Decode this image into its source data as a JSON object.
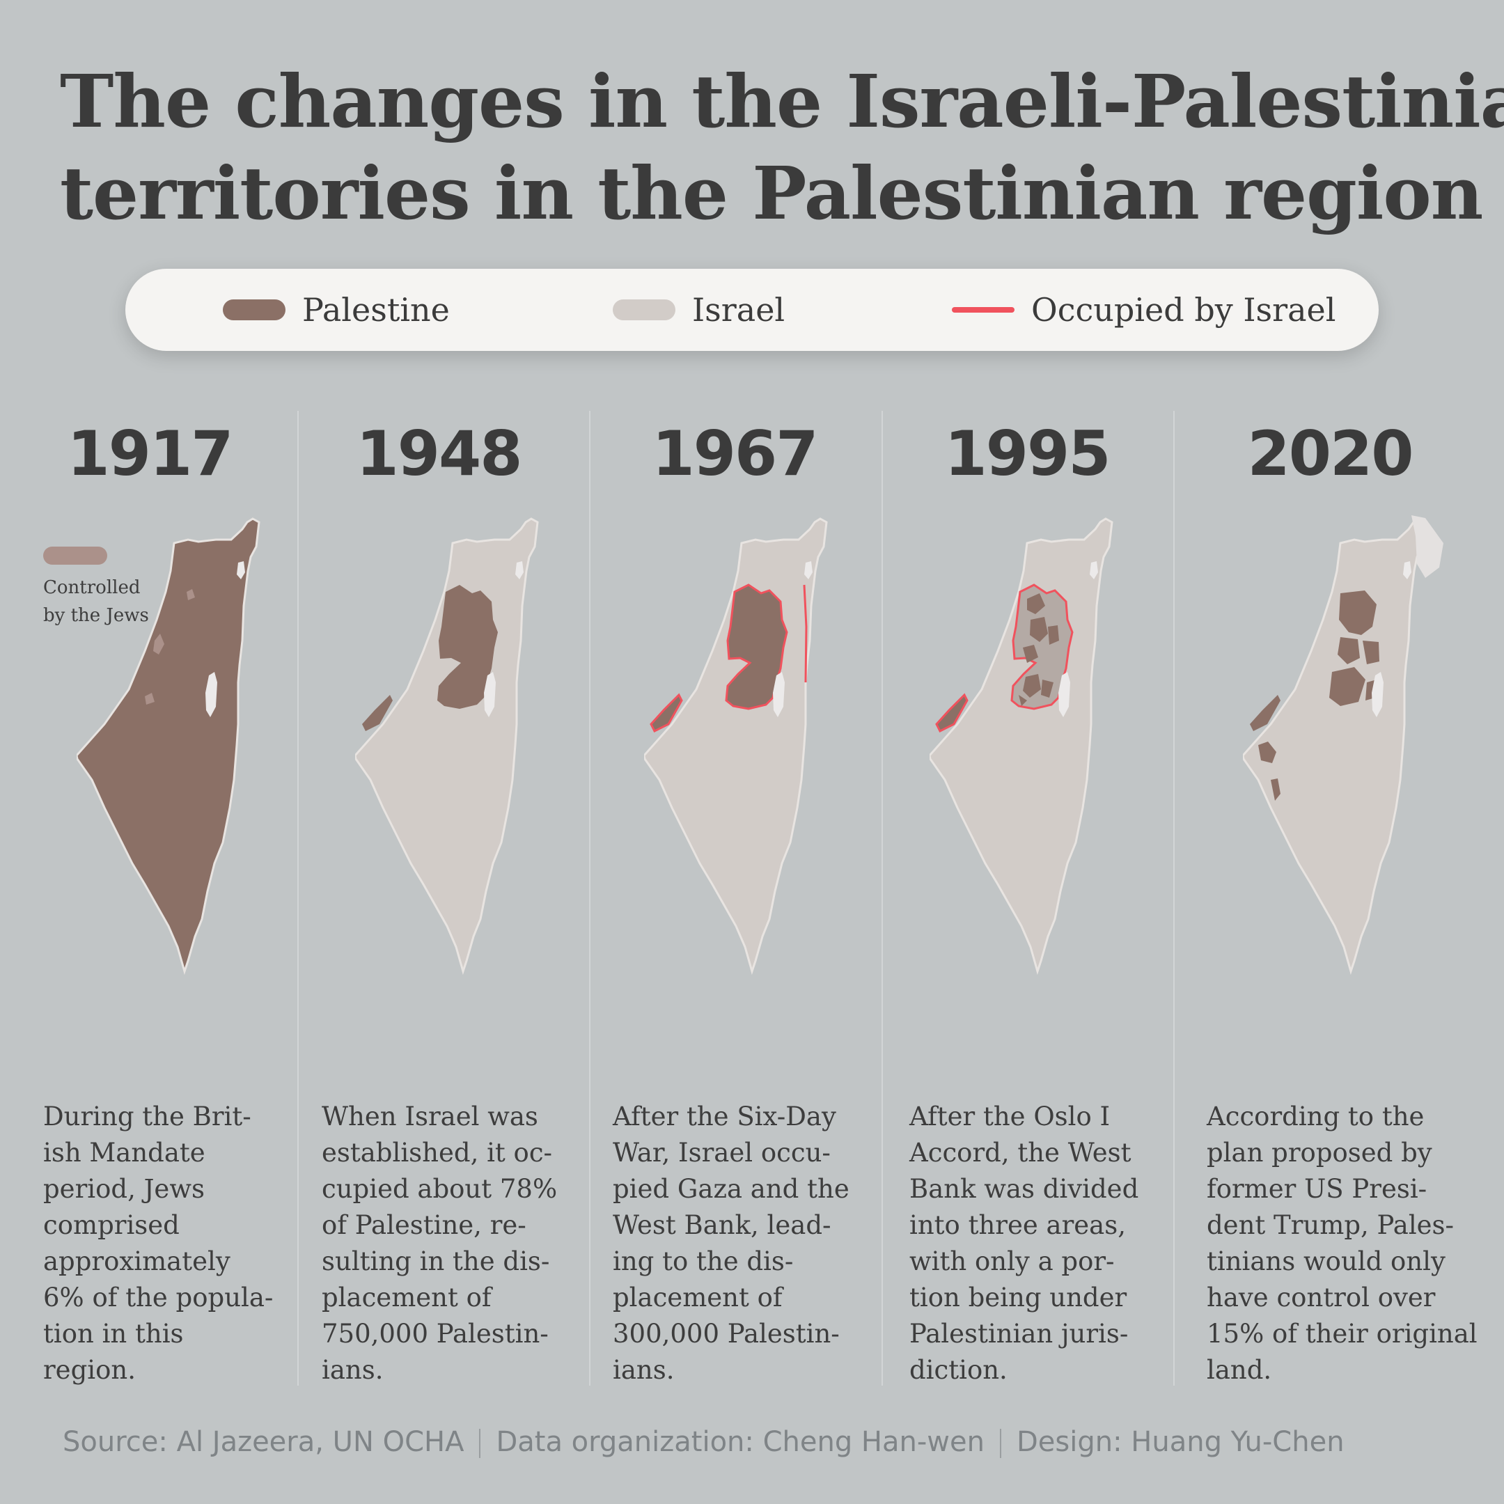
{
  "title_lines": [
    "The changes in the Israeli-Palestinian",
    "territories in the Palestinian region"
  ],
  "legend": [
    {
      "label": "Palestine",
      "color": "#8b7066"
    },
    {
      "label": "Israel",
      "color": "#d2ccc8"
    },
    {
      "label": "Occupied by Israel",
      "color": "#f0525d"
    }
  ],
  "note": {
    "lines": [
      "Controlled",
      "by the Jews"
    ],
    "color": "#ab918a"
  },
  "panels": [
    {
      "year": "1917",
      "desc": [
        "During the Brit-",
        "ish Mandate",
        "period, Jews",
        "comprised",
        "approximately",
        "6% of the popula-",
        "tion in this",
        "region."
      ]
    },
    {
      "year": "1948",
      "desc": [
        "When Israel was",
        "established, it oc-",
        "cupied about 78%",
        "of Palestine, re-",
        "sulting in the dis-",
        "placement of",
        "750,000 Palestin-",
        "ians."
      ]
    },
    {
      "year": "1967",
      "desc": [
        "After the Six-Day",
        "War, Israel occu-",
        "pied Gaza and the",
        "West Bank, lead-",
        "ing to the dis-",
        "placement of",
        "300,000 Palestin-",
        "ians."
      ]
    },
    {
      "year": "1995",
      "desc": [
        "After the Oslo I",
        "Accord, the West",
        "Bank was divided",
        "into three areas,",
        "with only a por-",
        "tion being under",
        "Palestinian juris-",
        "diction."
      ]
    },
    {
      "year": "2020",
      "desc": [
        "According to the",
        "plan proposed by",
        "former US Presi-",
        "dent Trump, Pales-",
        "tinians would only",
        "have control over",
        "15% of their original",
        "land."
      ]
    }
  ],
  "footer": {
    "source": "Source:  Al Jazeera, UN OCHA",
    "data_org": "Data organization: Cheng Han-wen",
    "design": "Design: Huang Yu-Chen"
  }
}
